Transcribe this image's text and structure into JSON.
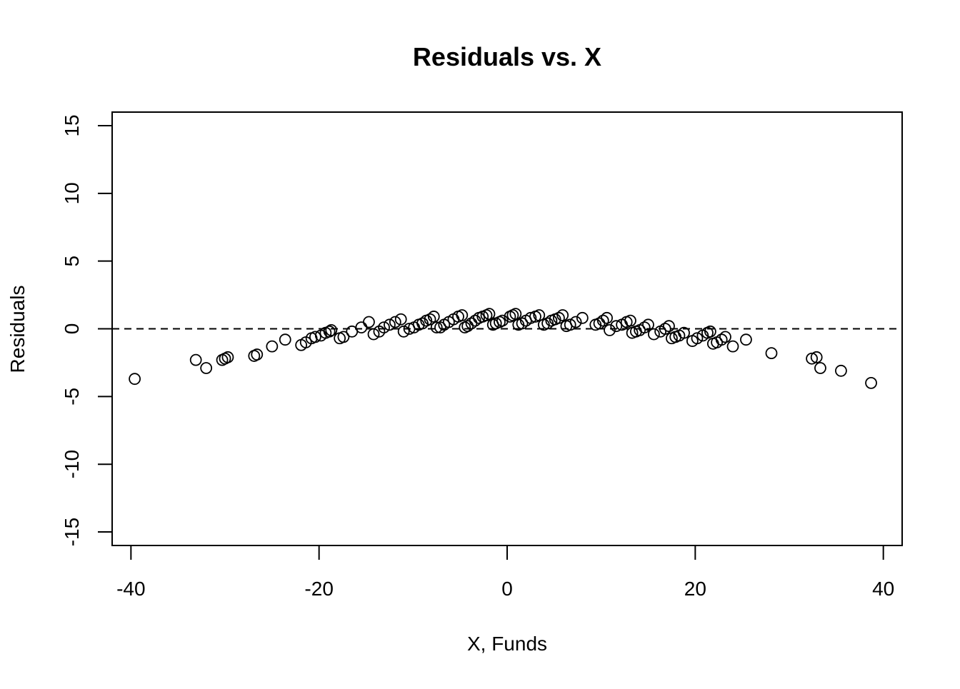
{
  "chart_data": {
    "type": "scatter",
    "title": "Residuals vs. X",
    "xlabel": "X, Funds",
    "ylabel": "Residuals",
    "xlim": [
      -42,
      42
    ],
    "ylim": [
      -16,
      16
    ],
    "x_ticks": [
      -40,
      -20,
      0,
      20,
      40
    ],
    "y_ticks": [
      -15,
      -10,
      -5,
      0,
      5,
      10,
      15
    ],
    "x_tick_labels": [
      "-40",
      "-20",
      "0",
      "20",
      "40"
    ],
    "y_tick_labels": [
      "-15",
      "-10",
      "-5",
      "0",
      "5",
      "10",
      "15"
    ],
    "reference_line": {
      "y": 0,
      "style": "dashed"
    },
    "marker": "open-circle",
    "grid": false,
    "legend": "none",
    "series": [
      {
        "points": [
          [
            -39.6,
            -3.7
          ],
          [
            -33.1,
            -2.3
          ],
          [
            -32.0,
            -2.9
          ],
          [
            -30.3,
            -2.3
          ],
          [
            -30.0,
            -2.2
          ],
          [
            -29.7,
            -2.1
          ],
          [
            -26.9,
            -2.0
          ],
          [
            -26.6,
            -1.9
          ],
          [
            -25.0,
            -1.3
          ],
          [
            -23.6,
            -0.8
          ],
          [
            -21.9,
            -1.2
          ],
          [
            -21.4,
            -1.0
          ],
          [
            -20.8,
            -0.7
          ],
          [
            -20.4,
            -0.6
          ],
          [
            -19.8,
            -0.5
          ],
          [
            -19.3,
            -0.3
          ],
          [
            -18.9,
            -0.2
          ],
          [
            -18.7,
            -0.1
          ],
          [
            -17.8,
            -0.7
          ],
          [
            -17.4,
            -0.6
          ],
          [
            -16.5,
            -0.2
          ],
          [
            -15.5,
            0.1
          ],
          [
            -14.7,
            0.5
          ],
          [
            -14.2,
            -0.4
          ],
          [
            -13.6,
            -0.2
          ],
          [
            -13.1,
            0.1
          ],
          [
            -12.5,
            0.3
          ],
          [
            -11.9,
            0.5
          ],
          [
            -11.3,
            0.7
          ],
          [
            -11.0,
            -0.2
          ],
          [
            -10.4,
            0.0
          ],
          [
            -9.9,
            0.1
          ],
          [
            -9.4,
            0.3
          ],
          [
            -9.0,
            0.4
          ],
          [
            -8.6,
            0.6
          ],
          [
            -8.2,
            0.7
          ],
          [
            -7.8,
            0.9
          ],
          [
            -7.5,
            0.1
          ],
          [
            -7.1,
            0.1
          ],
          [
            -6.7,
            0.3
          ],
          [
            -6.2,
            0.5
          ],
          [
            -5.7,
            0.7
          ],
          [
            -5.2,
            0.9
          ],
          [
            -4.8,
            1.0
          ],
          [
            -4.5,
            0.1
          ],
          [
            -4.2,
            0.2
          ],
          [
            -3.8,
            0.4
          ],
          [
            -3.4,
            0.6
          ],
          [
            -3.0,
            0.8
          ],
          [
            -2.6,
            0.9
          ],
          [
            -2.2,
            1.0
          ],
          [
            -1.9,
            1.1
          ],
          [
            -1.5,
            0.3
          ],
          [
            -1.2,
            0.4
          ],
          [
            -0.8,
            0.5
          ],
          [
            -0.5,
            0.6
          ],
          [
            0.3,
            0.9
          ],
          [
            0.6,
            1.0
          ],
          [
            0.9,
            1.1
          ],
          [
            1.2,
            0.3
          ],
          [
            1.6,
            0.4
          ],
          [
            2.0,
            0.6
          ],
          [
            2.5,
            0.8
          ],
          [
            3.0,
            0.9
          ],
          [
            3.4,
            1.0
          ],
          [
            3.9,
            0.3
          ],
          [
            4.3,
            0.4
          ],
          [
            4.7,
            0.6
          ],
          [
            5.1,
            0.7
          ],
          [
            5.5,
            0.8
          ],
          [
            5.9,
            1.0
          ],
          [
            6.3,
            0.2
          ],
          [
            6.7,
            0.3
          ],
          [
            7.3,
            0.5
          ],
          [
            8.0,
            0.8
          ],
          [
            9.4,
            0.3
          ],
          [
            9.8,
            0.4
          ],
          [
            10.2,
            0.6
          ],
          [
            10.6,
            0.8
          ],
          [
            10.9,
            -0.1
          ],
          [
            11.6,
            0.2
          ],
          [
            12.2,
            0.3
          ],
          [
            12.7,
            0.5
          ],
          [
            13.1,
            0.6
          ],
          [
            13.3,
            -0.3
          ],
          [
            13.7,
            -0.2
          ],
          [
            14.1,
            -0.1
          ],
          [
            14.6,
            0.1
          ],
          [
            15.0,
            0.3
          ],
          [
            15.6,
            -0.4
          ],
          [
            16.3,
            -0.2
          ],
          [
            16.8,
            0.0
          ],
          [
            17.2,
            0.2
          ],
          [
            17.5,
            -0.7
          ],
          [
            17.9,
            -0.6
          ],
          [
            18.3,
            -0.5
          ],
          [
            18.8,
            -0.3
          ],
          [
            19.7,
            -0.9
          ],
          [
            20.2,
            -0.7
          ],
          [
            20.8,
            -0.5
          ],
          [
            21.3,
            -0.3
          ],
          [
            21.6,
            -0.2
          ],
          [
            21.9,
            -1.1
          ],
          [
            22.3,
            -1.0
          ],
          [
            22.8,
            -0.8
          ],
          [
            23.2,
            -0.6
          ],
          [
            24.0,
            -1.3
          ],
          [
            25.4,
            -0.8
          ],
          [
            28.1,
            -1.8
          ],
          [
            32.4,
            -2.2
          ],
          [
            32.9,
            -2.1
          ],
          [
            33.3,
            -2.9
          ],
          [
            35.5,
            -3.1
          ],
          [
            38.7,
            -4.0
          ]
        ]
      }
    ]
  }
}
